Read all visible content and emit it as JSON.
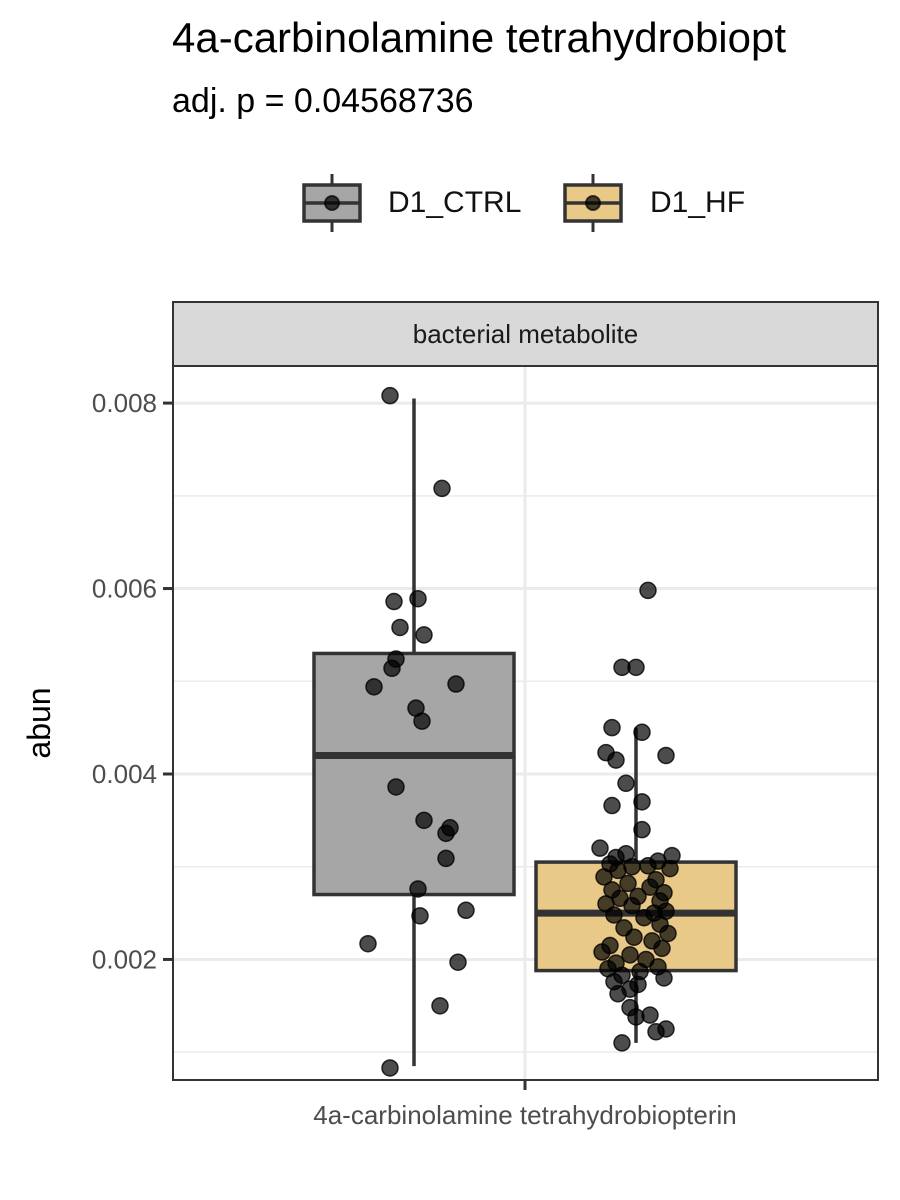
{
  "chart_data": {
    "type": "box",
    "title": "4a-carbinolamine tetrahydrobiopt",
    "subtitle": "adj. p = 0.04568736",
    "facet_label": "bacterial metabolite",
    "xlabel": "",
    "ylabel": "abun",
    "categories": [
      "4a-carbinolamine tetrahydrobiopterin"
    ],
    "ylim": [
      0.0007,
      0.0084
    ],
    "yticks": [
      0.002,
      0.004,
      0.006,
      0.008
    ],
    "ytick_labels": [
      "0.002",
      "0.004",
      "0.006",
      "0.008"
    ],
    "legend_position": "top",
    "grid": true,
    "series": [
      {
        "name": "D1_CTRL",
        "color": "#a6a6a6",
        "box": {
          "q1": 0.0027,
          "median": 0.0042,
          "q3": 0.0053,
          "whisker_low": 0.00085,
          "whisker_high": 0.00805
        },
        "points": [
          0.00808,
          0.00708,
          0.00589,
          0.00586,
          0.00558,
          0.0055,
          0.00524,
          0.00514,
          0.00497,
          0.00494,
          0.00471,
          0.00457,
          0.00386,
          0.0035,
          0.00342,
          0.00336,
          0.00309,
          0.00276,
          0.00253,
          0.00247,
          0.00217,
          0.00197,
          0.0015,
          0.00083
        ],
        "jitter": [
          -0.12,
          0.14,
          0.02,
          -0.1,
          -0.07,
          0.05,
          -0.09,
          -0.11,
          0.21,
          -0.2,
          0.01,
          0.04,
          -0.09,
          0.05,
          0.18,
          0.16,
          0.16,
          0.02,
          0.26,
          0.03,
          -0.23,
          0.22,
          0.13,
          -0.12
        ]
      },
      {
        "name": "D1_HF",
        "color": "#e8c987",
        "box": {
          "q1": 0.00188,
          "median": 0.0025,
          "q3": 0.00305,
          "whisker_low": 0.0011,
          "whisker_high": 0.0045
        },
        "points": [
          0.00598,
          0.00515,
          0.00515,
          0.0045,
          0.00445,
          0.00423,
          0.0042,
          0.00415,
          0.0039,
          0.0037,
          0.00366,
          0.0034,
          0.0032,
          0.00314,
          0.00312,
          0.0031,
          0.00306,
          0.00303,
          0.00301,
          0.003,
          0.00298,
          0.00296,
          0.00289,
          0.00286,
          0.00282,
          0.00278,
          0.00275,
          0.00272,
          0.00268,
          0.00266,
          0.00263,
          0.0026,
          0.00258,
          0.00252,
          0.0025,
          0.00248,
          0.00245,
          0.00238,
          0.00234,
          0.00228,
          0.00224,
          0.0022,
          0.00215,
          0.00212,
          0.00208,
          0.00205,
          0.002,
          0.00196,
          0.00192,
          0.0019,
          0.00187,
          0.00183,
          0.0018,
          0.00176,
          0.00173,
          0.00168,
          0.00163,
          0.00148,
          0.0014,
          0.00138,
          0.00125,
          0.00122,
          0.0011
        ],
        "jitter": [
          0.06,
          -0.07,
          0.0,
          -0.12,
          0.03,
          -0.15,
          0.15,
          -0.1,
          -0.05,
          0.03,
          -0.12,
          0.03,
          -0.18,
          -0.05,
          0.18,
          -0.1,
          0.11,
          -0.13,
          0.06,
          -0.02,
          0.17,
          -0.09,
          -0.16,
          0.1,
          -0.04,
          0.07,
          -0.12,
          0.14,
          0.01,
          -0.08,
          0.12,
          -0.15,
          -0.02,
          0.15,
          0.09,
          -0.11,
          0.04,
          0.12,
          -0.06,
          0.16,
          -0.01,
          0.08,
          -0.13,
          0.13,
          -0.17,
          -0.03,
          0.05,
          -0.1,
          0.11,
          -0.14,
          0.02,
          -0.07,
          0.14,
          -0.11,
          0.01,
          -0.03,
          -0.09,
          -0.03,
          0.07,
          0.0,
          0.15,
          0.1,
          -0.07
        ]
      }
    ]
  }
}
